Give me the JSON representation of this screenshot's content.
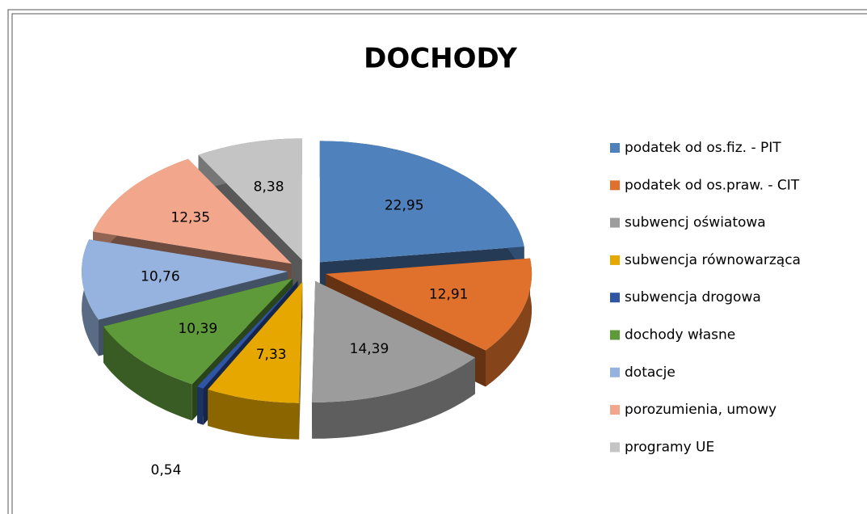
{
  "chart_data": {
    "type": "pie",
    "title": "DOCHODY",
    "categories": [
      "podatek od os.fiz. - PIT",
      "podatek od os.praw. - CIT",
      "subwencj oświatowa",
      "subwencja równowarząca",
      "subwencja drogowa",
      "dochody własne",
      "dotacje",
      "porozumienia, umowy",
      "programy UE"
    ],
    "values": [
      22.95,
      12.91,
      14.39,
      7.33,
      0.54,
      10.39,
      10.76,
      12.35,
      8.38
    ],
    "value_labels": [
      "22,95",
      "12,91",
      "14,39",
      "7,33",
      "0,54",
      "10,39",
      "10,76",
      "12,35",
      "8,38"
    ],
    "colors": [
      "#4f81bd",
      "#e0712c",
      "#9c9c9c",
      "#e6a800",
      "#2f55a4",
      "#5e9a3a",
      "#95b3de",
      "#f2a68b",
      "#c4c4c4"
    ],
    "legend": "right"
  }
}
